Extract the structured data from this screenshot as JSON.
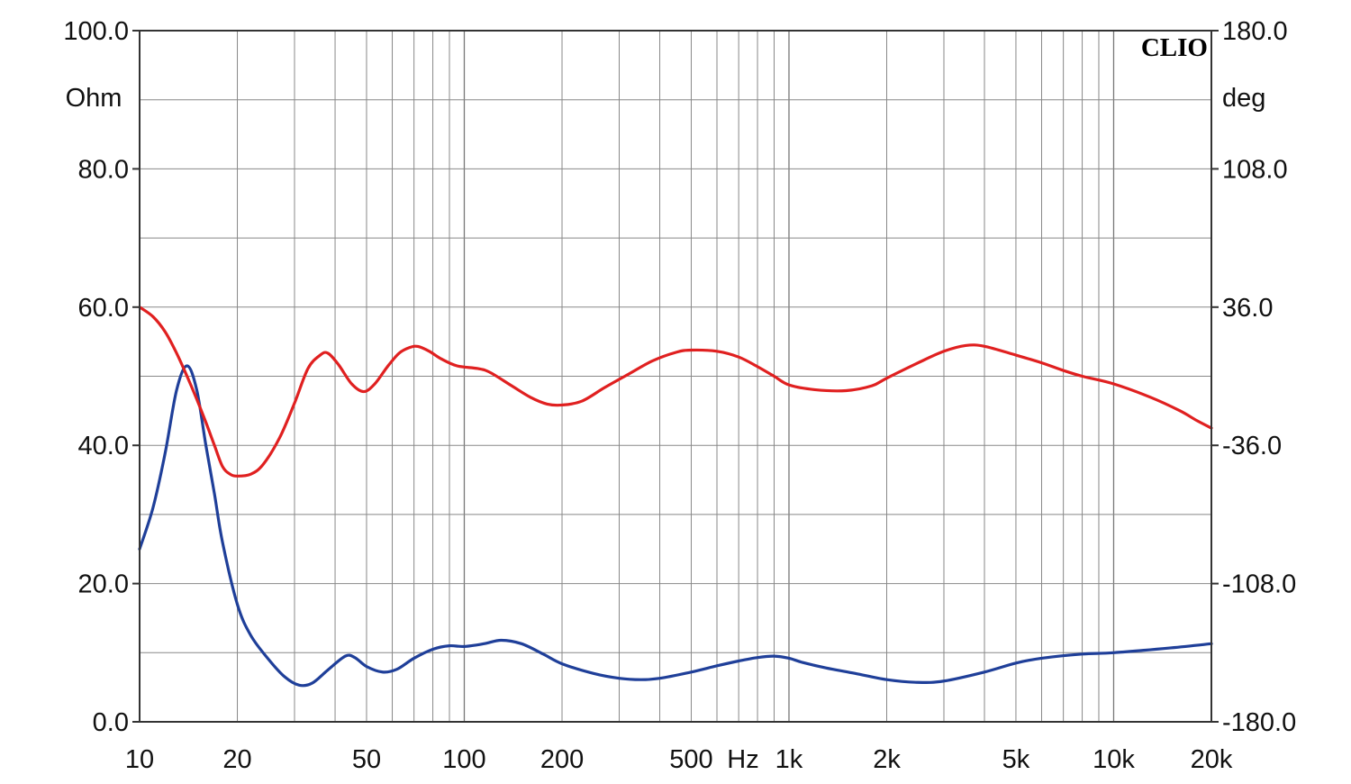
{
  "chart_data": {
    "type": "line",
    "brand_label": "CLIO",
    "x_scale": "log",
    "xlim": [
      10,
      20000
    ],
    "x_ticks": [
      10,
      20,
      50,
      100,
      200,
      500,
      1000,
      2000,
      5000,
      10000,
      20000
    ],
    "x_tick_labels": [
      "10",
      "20",
      "50",
      "100",
      "200",
      "500",
      "1k",
      "2k",
      "5k",
      "10k",
      "20k"
    ],
    "x_unit_label": "Hz",
    "left_axis": {
      "unit": "Ohm",
      "ylim": [
        0,
        100
      ],
      "ticks": [
        0,
        20,
        40,
        60,
        80,
        100
      ],
      "tick_labels": [
        "0.0",
        "20.0",
        "40.0",
        "60.0",
        "80.0",
        "100.0"
      ]
    },
    "right_axis": {
      "unit": "deg",
      "ylim": [
        -180,
        180
      ],
      "ticks": [
        -180,
        -108,
        -36,
        36,
        108,
        180
      ],
      "tick_labels": [
        "-180.0",
        "-108.0",
        "-36.0",
        "36.0",
        "108.0",
        "180.0"
      ]
    },
    "grid": true,
    "series": [
      {
        "axis": "left",
        "color": "#1f3f99",
        "points": [
          [
            10,
            25
          ],
          [
            11,
            31
          ],
          [
            12,
            39
          ],
          [
            13,
            48
          ],
          [
            14,
            51.5
          ],
          [
            15,
            48
          ],
          [
            16,
            40
          ],
          [
            17,
            33
          ],
          [
            18,
            26
          ],
          [
            20,
            17
          ],
          [
            22,
            12.5
          ],
          [
            25,
            9
          ],
          [
            28,
            6.5
          ],
          [
            31,
            5.3
          ],
          [
            34,
            5.6
          ],
          [
            38,
            7.5
          ],
          [
            43,
            9.5
          ],
          [
            46,
            9.3
          ],
          [
            50,
            8
          ],
          [
            56,
            7.2
          ],
          [
            62,
            7.6
          ],
          [
            70,
            9.2
          ],
          [
            80,
            10.5
          ],
          [
            90,
            11
          ],
          [
            100,
            10.9
          ],
          [
            115,
            11.3
          ],
          [
            130,
            11.8
          ],
          [
            150,
            11.3
          ],
          [
            175,
            9.8
          ],
          [
            200,
            8.4
          ],
          [
            250,
            7
          ],
          [
            300,
            6.3
          ],
          [
            350,
            6.1
          ],
          [
            400,
            6.3
          ],
          [
            500,
            7.2
          ],
          [
            600,
            8.1
          ],
          [
            700,
            8.8
          ],
          [
            800,
            9.3
          ],
          [
            900,
            9.5
          ],
          [
            1000,
            9.2
          ],
          [
            1100,
            8.6
          ],
          [
            1300,
            7.8
          ],
          [
            1600,
            7
          ],
          [
            2000,
            6.1
          ],
          [
            2500,
            5.7
          ],
          [
            3000,
            5.9
          ],
          [
            4000,
            7.2
          ],
          [
            5000,
            8.5
          ],
          [
            6000,
            9.2
          ],
          [
            8000,
            9.8
          ],
          [
            10000,
            10
          ],
          [
            15000,
            10.7
          ],
          [
            20000,
            11.3
          ]
        ]
      },
      {
        "axis": "right",
        "color": "#e02020",
        "points": [
          [
            10,
            36
          ],
          [
            11,
            31
          ],
          [
            12,
            23
          ],
          [
            13,
            12
          ],
          [
            14,
            0
          ],
          [
            15,
            -12
          ],
          [
            16,
            -24
          ],
          [
            17,
            -36
          ],
          [
            18,
            -47
          ],
          [
            19,
            -51
          ],
          [
            20,
            -52
          ],
          [
            22,
            -51
          ],
          [
            24,
            -46
          ],
          [
            27,
            -32
          ],
          [
            30,
            -14
          ],
          [
            33,
            4
          ],
          [
            36,
            11
          ],
          [
            38,
            12
          ],
          [
            41,
            6
          ],
          [
            45,
            -4
          ],
          [
            49,
            -8
          ],
          [
            53,
            -4
          ],
          [
            58,
            5
          ],
          [
            63,
            12
          ],
          [
            68,
            15
          ],
          [
            72,
            15.5
          ],
          [
            78,
            13
          ],
          [
            85,
            9
          ],
          [
            95,
            5.4
          ],
          [
            110,
            4
          ],
          [
            120,
            2
          ],
          [
            140,
            -5
          ],
          [
            160,
            -11
          ],
          [
            180,
            -14.5
          ],
          [
            200,
            -15
          ],
          [
            230,
            -13
          ],
          [
            270,
            -6
          ],
          [
            320,
            1
          ],
          [
            380,
            8
          ],
          [
            450,
            12.5
          ],
          [
            500,
            13.6
          ],
          [
            600,
            13
          ],
          [
            700,
            10
          ],
          [
            800,
            5
          ],
          [
            900,
            0
          ],
          [
            1000,
            -4.5
          ],
          [
            1200,
            -7
          ],
          [
            1500,
            -7.5
          ],
          [
            1800,
            -5
          ],
          [
            2000,
            -1
          ],
          [
            2500,
            7
          ],
          [
            3000,
            13
          ],
          [
            3500,
            16
          ],
          [
            4000,
            15.6
          ],
          [
            5000,
            11
          ],
          [
            6000,
            7
          ],
          [
            7000,
            3
          ],
          [
            8000,
            0
          ],
          [
            10000,
            -4
          ],
          [
            13000,
            -11
          ],
          [
            16000,
            -18
          ],
          [
            18000,
            -23
          ],
          [
            20000,
            -27
          ]
        ]
      }
    ]
  }
}
